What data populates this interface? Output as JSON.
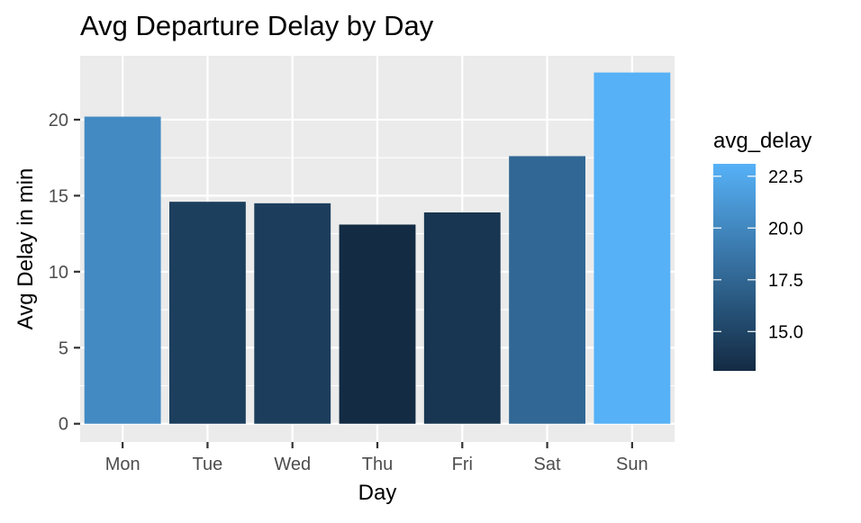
{
  "chart_data": {
    "type": "bar",
    "title": "Avg Departure Delay by Day",
    "xlabel": "Day",
    "ylabel": "Avg Delay in min",
    "categories": [
      "Mon",
      "Tue",
      "Wed",
      "Thu",
      "Fri",
      "Sat",
      "Sun"
    ],
    "values": [
      20.2,
      14.6,
      14.5,
      13.1,
      13.9,
      17.6,
      23.1
    ],
    "ylim": [
      -1.2,
      24.2
    ],
    "y_ticks": [
      0,
      5,
      10,
      15,
      20
    ],
    "y_tick_labels": [
      "0",
      "5",
      "10",
      "15",
      "20"
    ],
    "grid": true,
    "legend": {
      "title": "avg_delay",
      "position": "right",
      "type": "colorbar",
      "range": [
        13.1,
        23.1
      ],
      "ticks": [
        15.0,
        17.5,
        20.0,
        22.5
      ],
      "tick_labels": [
        "15.0",
        "17.5",
        "20.0",
        "22.5"
      ]
    },
    "colors": {
      "low": "#132B43",
      "high": "#56B1F7",
      "panel_background": "#EBEBEB",
      "grid_major": "#FFFFFF"
    }
  }
}
